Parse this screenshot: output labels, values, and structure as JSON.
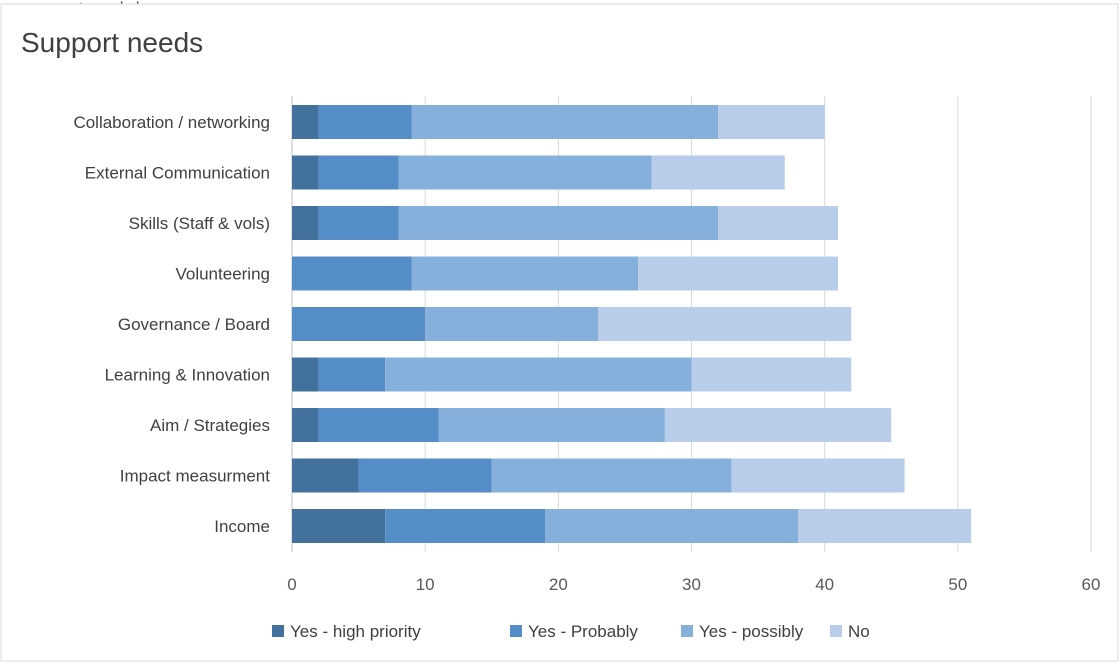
{
  "chart_data": {
    "type": "bar",
    "orientation": "horizontal",
    "stacked": true,
    "title": "Support needs",
    "top_cut_text": "upport needs by …",
    "categories": [
      "Collaboration / networking",
      "External Communication",
      "Skills (Staff & vols)",
      "Volunteering",
      "Governance / Board",
      "Learning & Innovation",
      "Aim / Strategies",
      "Impact measurment",
      "Income"
    ],
    "series": [
      {
        "name": "Yes - high priority",
        "color": "#41719c",
        "values": [
          2,
          2,
          2,
          0,
          0,
          2,
          2,
          5,
          7
        ]
      },
      {
        "name": "Yes - Probably",
        "color": "#548dc8",
        "values": [
          7,
          6,
          6,
          9,
          10,
          5,
          9,
          10,
          12
        ]
      },
      {
        "name": "Yes - possibly",
        "color": "#86b0dc",
        "values": [
          23,
          19,
          24,
          17,
          13,
          23,
          17,
          18,
          19
        ]
      },
      {
        "name": "No",
        "color": "#b7cde9",
        "values": [
          8,
          10,
          9,
          15,
          19,
          12,
          17,
          13,
          13
        ]
      }
    ],
    "xlim": [
      0,
      60
    ],
    "xticks": [
      0,
      10,
      20,
      30,
      40,
      50,
      60
    ],
    "grid": true,
    "legend_position": "bottom"
  }
}
